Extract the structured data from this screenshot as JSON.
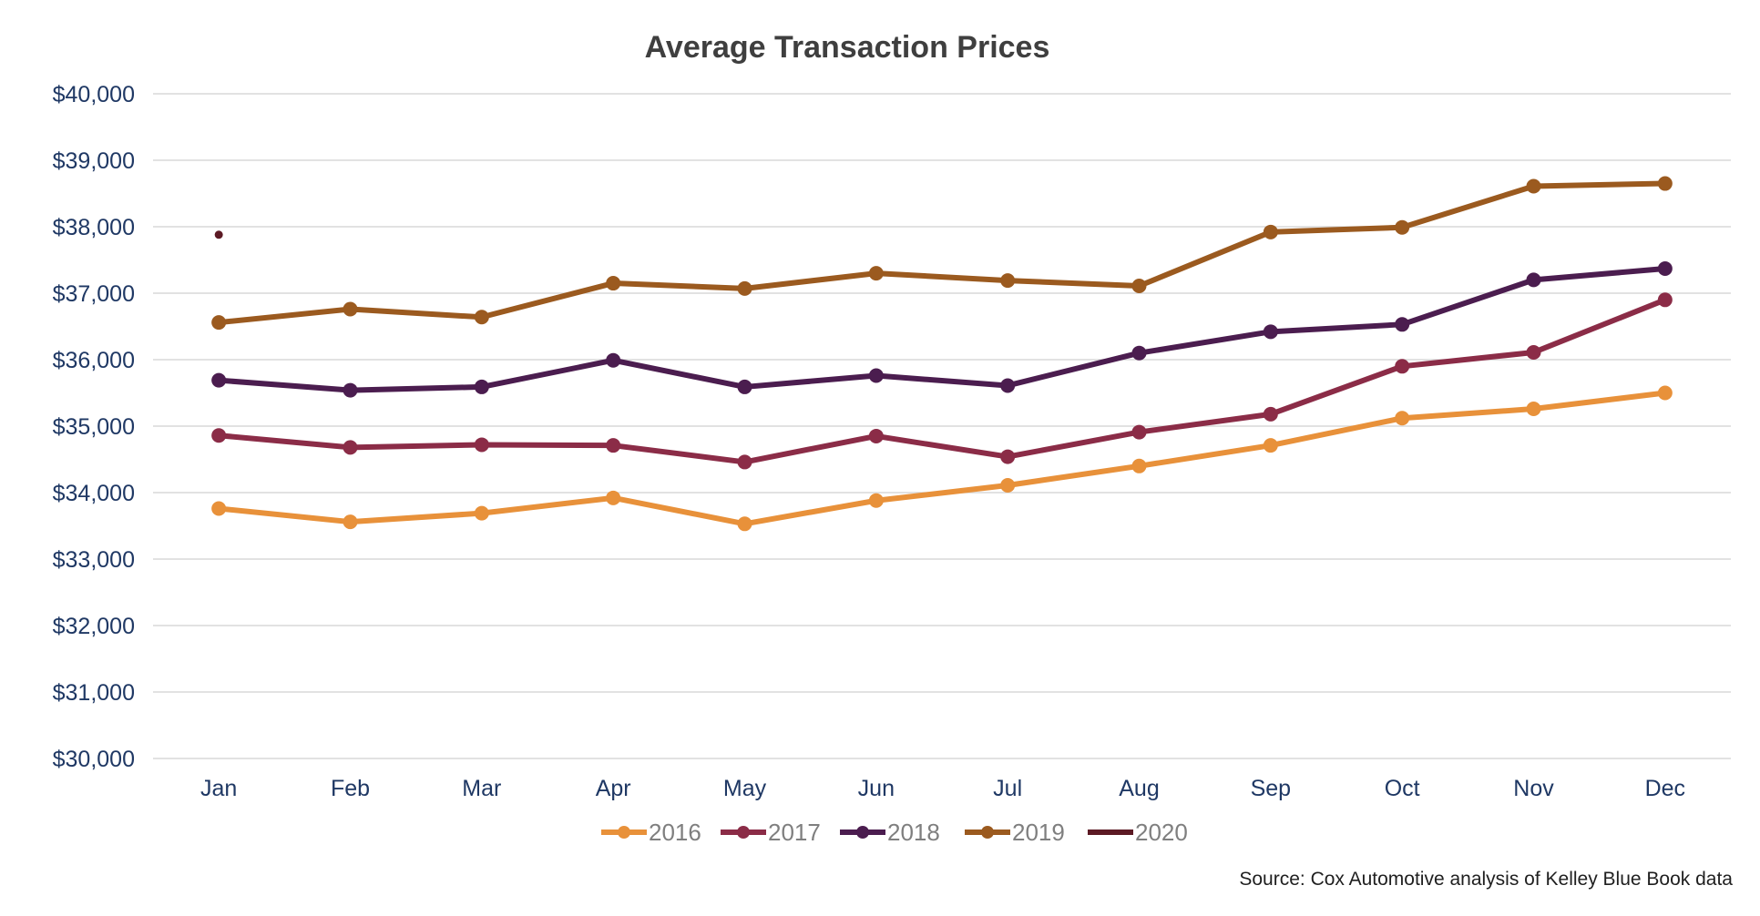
{
  "chart_data": {
    "type": "line",
    "title": "Average Transaction Prices",
    "xlabel": "",
    "ylabel": "",
    "ylim": [
      30000,
      40000
    ],
    "yticks": [
      30000,
      31000,
      32000,
      33000,
      34000,
      35000,
      36000,
      37000,
      38000,
      39000,
      40000
    ],
    "ytick_labels": [
      "$30,000",
      "$31,000",
      "$32,000",
      "$33,000",
      "$34,000",
      "$35,000",
      "$36,000",
      "$37,000",
      "$38,000",
      "$39,000",
      "$40,000"
    ],
    "categories": [
      "Jan",
      "Feb",
      "Mar",
      "Apr",
      "May",
      "Jun",
      "Jul",
      "Aug",
      "Sep",
      "Oct",
      "Nov",
      "Dec"
    ],
    "grid": true,
    "legend_position": "bottom",
    "series": [
      {
        "name": "2016",
        "color": "#e8913a",
        "values": [
          33760,
          33560,
          33690,
          33920,
          33530,
          33880,
          34110,
          34400,
          34710,
          35120,
          35260,
          35500
        ]
      },
      {
        "name": "2017",
        "color": "#8b2c47",
        "values": [
          34860,
          34680,
          34720,
          34710,
          34460,
          34850,
          34540,
          34910,
          35180,
          35900,
          36110,
          36900
        ]
      },
      {
        "name": "2018",
        "color": "#4b1d4f",
        "values": [
          35690,
          35540,
          35590,
          35990,
          35590,
          35760,
          35610,
          36100,
          36420,
          36530,
          37200,
          37370
        ]
      },
      {
        "name": "2019",
        "color": "#9b5a1f",
        "values": [
          36560,
          36760,
          36640,
          37150,
          37070,
          37300,
          37190,
          37110,
          37920,
          37990,
          38610,
          38650
        ]
      },
      {
        "name": "2020",
        "color": "#5c1a24",
        "values": [
          37880,
          null,
          null,
          null,
          null,
          null,
          null,
          null,
          null,
          null,
          null,
          null
        ]
      }
    ],
    "source": "Source: Cox Automotive analysis of Kelley Blue Book data"
  }
}
